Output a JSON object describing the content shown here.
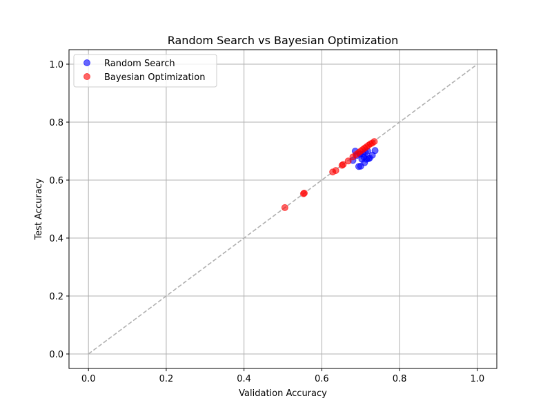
{
  "chart_data": {
    "type": "scatter",
    "title": "Random Search vs Bayesian Optimization",
    "xlabel": "Validation Accuracy",
    "ylabel": "Test Accuracy",
    "xlim": [
      -0.05,
      1.05
    ],
    "ylim": [
      -0.05,
      1.05
    ],
    "xticks": [
      0.0,
      0.2,
      0.4,
      0.6,
      0.8,
      1.0
    ],
    "yticks": [
      0.0,
      0.2,
      0.4,
      0.6,
      0.8,
      1.0
    ],
    "grid": true,
    "legend_position": "top-left",
    "reference_line": {
      "x": [
        0,
        1
      ],
      "y": [
        0,
        1
      ],
      "style": "dashed",
      "color": "#b0b0b0"
    },
    "series": [
      {
        "name": "Random Search",
        "color": "#0000ff",
        "x": [
          0.68,
          0.686,
          0.69,
          0.695,
          0.698,
          0.7,
          0.703,
          0.706,
          0.708,
          0.71,
          0.712,
          0.715,
          0.718,
          0.72,
          0.723,
          0.73,
          0.737
        ],
        "y": [
          0.668,
          0.7,
          0.685,
          0.647,
          0.69,
          0.648,
          0.672,
          0.69,
          0.68,
          0.66,
          0.695,
          0.672,
          0.7,
          0.674,
          0.676,
          0.686,
          0.702
        ]
      },
      {
        "name": "Bayesian Optimization",
        "color": "#ff0000",
        "x": [
          0.505,
          0.553,
          0.555,
          0.628,
          0.636,
          0.652,
          0.655,
          0.668,
          0.68,
          0.688,
          0.695,
          0.7,
          0.705,
          0.71,
          0.715,
          0.72,
          0.725,
          0.73,
          0.735
        ],
        "y": [
          0.505,
          0.553,
          0.555,
          0.628,
          0.633,
          0.651,
          0.654,
          0.666,
          0.68,
          0.688,
          0.695,
          0.7,
          0.705,
          0.71,
          0.715,
          0.72,
          0.725,
          0.728,
          0.733
        ]
      }
    ]
  }
}
